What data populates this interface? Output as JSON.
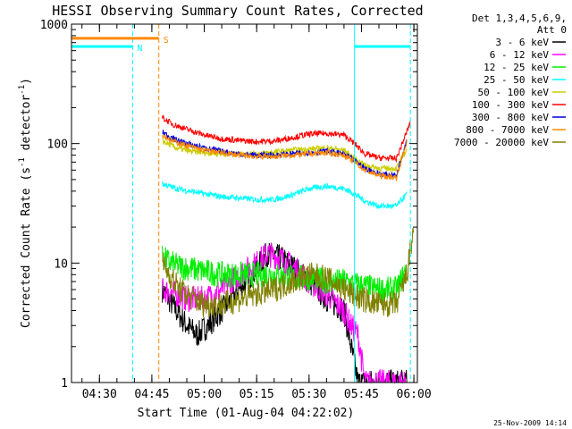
{
  "chart_data": {
    "type": "line",
    "title": "HESSI Observing Summary Count Rates, Corrected",
    "xlabel": "Start Time (01-Aug-04 04:22:02)",
    "ylabel_parts": [
      "Corrected Count Rate (s",
      "-1",
      " detector",
      "-1",
      ")"
    ],
    "y_scale": "log",
    "ylim": [
      1,
      1000
    ],
    "xlim_minutes_after_0422": [
      0,
      99
    ],
    "x_tick_labels": [
      "04:30",
      "04:45",
      "05:00",
      "05:15",
      "05:30",
      "05:45",
      "06:00"
    ],
    "y_tick_labels": [
      "1",
      "10",
      "100",
      "1000"
    ],
    "legend_header": [
      "Det 1,3,4,5,6,9,",
      "Att 0"
    ],
    "legend_placement": "right, outside plot",
    "timestamp": "25-Nov-2009 14:14",
    "series": [
      {
        "name": "3 - 6 keV",
        "color": "#000000",
        "t": [
          "04:48",
          "04:52",
          "04:55",
          "04:58",
          "05:01",
          "05:05",
          "05:10",
          "05:15",
          "05:18",
          "05:22",
          "05:26",
          "05:30",
          "05:35",
          "05:40",
          "05:42",
          "05:44",
          "05:46",
          "05:50",
          "05:54",
          "05:57",
          "05:58"
        ],
        "values": [
          6,
          4,
          3,
          2.5,
          3,
          4,
          6,
          9,
          12,
          11,
          9,
          7,
          5,
          4,
          2,
          1,
          1,
          1,
          1,
          1,
          1
        ]
      },
      {
        "name": "6 - 12 keV",
        "color": "#ff00ff",
        "t": [
          "04:48",
          "04:52",
          "04:55",
          "05:00",
          "05:05",
          "05:10",
          "05:15",
          "05:18",
          "05:22",
          "05:26",
          "05:30",
          "05:35",
          "05:40",
          "05:42",
          "05:44",
          "05:46",
          "05:50",
          "05:55",
          "05:58"
        ],
        "values": [
          6,
          5.5,
          5,
          5,
          6,
          8,
          10,
          12,
          11,
          9,
          7,
          5.5,
          4,
          3,
          2.5,
          1,
          1,
          1,
          1
        ]
      },
      {
        "name": "12 - 25 keV",
        "color": "#00ee00",
        "t": [
          "04:48",
          "04:52",
          "04:56",
          "05:00",
          "05:05",
          "05:10",
          "05:15",
          "05:20",
          "05:25",
          "05:30",
          "05:35",
          "05:40",
          "05:45",
          "05:50",
          "05:55",
          "05:58"
        ],
        "values": [
          11,
          9.5,
          9,
          8.5,
          8,
          8,
          8,
          8,
          7.5,
          7.5,
          7,
          7,
          6.5,
          6,
          6,
          9
        ]
      },
      {
        "name": "25 - 50 keV",
        "color": "#00ffff",
        "t": [
          "04:48",
          "04:52",
          "04:56",
          "05:00",
          "05:05",
          "05:10",
          "05:15",
          "05:20",
          "05:25",
          "05:30",
          "05:35",
          "05:40",
          "05:43",
          "05:46",
          "05:50",
          "05:55",
          "05:58"
        ],
        "values": [
          46,
          42,
          40,
          38,
          36,
          35,
          34,
          34,
          37,
          42,
          44,
          42,
          38,
          33,
          30,
          30,
          38
        ]
      },
      {
        "name": "50 - 100 keV",
        "color": "#cccc00",
        "t": [
          "04:48",
          "04:52",
          "04:56",
          "05:00",
          "05:05",
          "05:10",
          "05:15",
          "05:20",
          "05:25",
          "05:30",
          "05:35",
          "05:40",
          "05:43",
          "05:46",
          "05:50",
          "05:55",
          "05:58"
        ],
        "values": [
          105,
          92,
          86,
          84,
          82,
          82,
          82,
          85,
          88,
          90,
          92,
          88,
          75,
          66,
          62,
          62,
          90
        ]
      },
      {
        "name": "100 - 300 keV",
        "color": "#ff0000",
        "t": [
          "04:48",
          "04:51",
          "04:55",
          "05:00",
          "05:05",
          "05:10",
          "05:15",
          "05:20",
          "05:25",
          "05:30",
          "05:35",
          "05:40",
          "05:43",
          "05:46",
          "05:50",
          "05:55",
          "05:59"
        ],
        "values": [
          165,
          145,
          132,
          118,
          110,
          106,
          104,
          105,
          112,
          120,
          122,
          118,
          100,
          82,
          76,
          75,
          150
        ]
      },
      {
        "name": "300 - 800 keV",
        "color": "#0000dd",
        "t": [
          "04:48",
          "04:51",
          "04:55",
          "05:00",
          "05:05",
          "05:10",
          "05:15",
          "05:20",
          "05:25",
          "05:30",
          "05:35",
          "05:40",
          "05:43",
          "05:46",
          "05:50",
          "05:55",
          "05:58"
        ],
        "values": [
          125,
          110,
          100,
          92,
          86,
          82,
          80,
          80,
          82,
          84,
          86,
          82,
          72,
          62,
          56,
          54,
          110
        ]
      },
      {
        "name": "800 - 7000 keV",
        "color": "#ff8800",
        "t": [
          "04:48",
          "04:51",
          "04:55",
          "05:00",
          "05:05",
          "05:10",
          "05:15",
          "05:20",
          "05:25",
          "05:30",
          "05:35",
          "05:40",
          "05:43",
          "05:46",
          "05:50",
          "05:55",
          "05:58"
        ],
        "values": [
          118,
          105,
          96,
          88,
          84,
          80,
          78,
          78,
          80,
          82,
          84,
          80,
          70,
          60,
          54,
          52,
          105
        ]
      },
      {
        "name": "7000 - 20000 keV",
        "color": "#808000",
        "t": [
          "04:48",
          "04:50",
          "04:53",
          "04:57",
          "05:00",
          "05:05",
          "05:10",
          "05:15",
          "05:20",
          "05:25",
          "05:30",
          "05:35",
          "05:40",
          "05:45",
          "05:50",
          "05:55",
          "05:58",
          "06:00"
        ],
        "values": [
          10,
          8,
          6,
          5,
          4.5,
          4.5,
          5,
          5.5,
          6,
          7,
          8,
          7.5,
          6,
          5,
          4.5,
          4.5,
          8,
          20
        ]
      }
    ],
    "markers": [
      {
        "label": "N",
        "color": "#00ffff",
        "level": 650,
        "t_start": "04:22",
        "t_end": "04:39:30"
      },
      {
        "label": "S",
        "color": "#ff8800",
        "level": 760,
        "t_start": "04:22",
        "t_end": "04:47"
      },
      {
        "label": "",
        "color": "#00ffff",
        "level": 650,
        "t_start": "05:43",
        "t_end": "05:59"
      }
    ],
    "vertical_lines": [
      {
        "t": "04:39:30",
        "color": "#00ffff",
        "style": "dashed"
      },
      {
        "t": "04:47",
        "color": "#ff8800",
        "style": "dashed"
      },
      {
        "t": "05:43",
        "color": "#00ffff",
        "style": "solid"
      },
      {
        "t": "05:59",
        "color": "#00ffff",
        "style": "dashed"
      }
    ]
  }
}
